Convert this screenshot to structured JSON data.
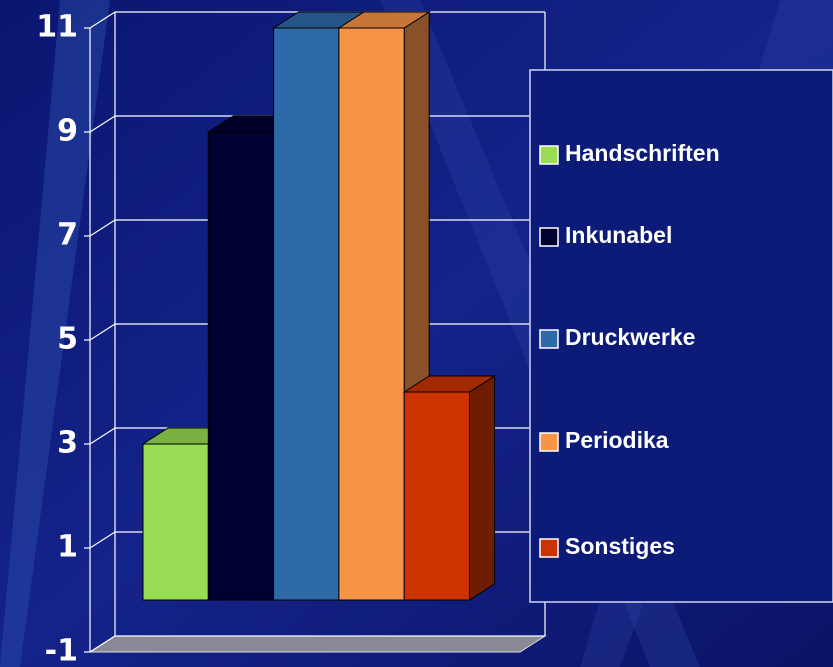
{
  "chart_data": {
    "type": "bar3d",
    "series": [
      {
        "name": "Handschriften",
        "color": "#99dd55",
        "values": [
          3
        ]
      },
      {
        "name": "Inkunabel",
        "color": "#000033",
        "values": [
          9
        ]
      },
      {
        "name": "Druckwerke",
        "color": "#2e6aa8",
        "values": [
          11
        ]
      },
      {
        "name": "Periodika",
        "color": "#f79446",
        "values": [
          11
        ]
      },
      {
        "name": "Sonstiges",
        "color": "#cc3300",
        "values": [
          4
        ]
      }
    ],
    "ylim": [
      -1,
      11
    ],
    "yticks": [
      -1,
      1,
      3,
      5,
      7,
      9,
      11
    ],
    "grid": true,
    "legend": "right"
  }
}
